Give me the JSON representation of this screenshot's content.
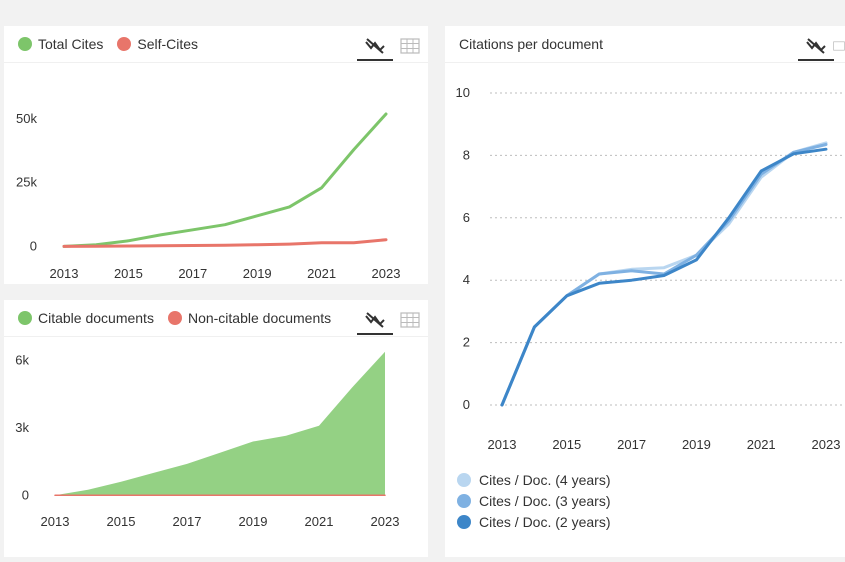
{
  "colors": {
    "total_cites": "#7dc56a",
    "self_cites": "#e8756a",
    "citable": "#7dc56a",
    "citable_fill": "#94d184",
    "non_citable": "#e8756a",
    "cpd_4y": "#b9d6f0",
    "cpd_3y": "#7fb1e2",
    "cpd_2y": "#3d86c8",
    "grid": "#bdbdbd"
  },
  "toolbar": {
    "chart_icon": "chart-icon",
    "table_icon": "table-icon"
  },
  "chart_data": [
    {
      "id": "cites",
      "type": "line",
      "x": [
        2013,
        2014,
        2015,
        2016,
        2017,
        2018,
        2019,
        2020,
        2021,
        2022,
        2023
      ],
      "xticks": [
        "2013",
        "2015",
        "2017",
        "2019",
        "2021",
        "2023"
      ],
      "yticks": [
        {
          "v": 0,
          "label": "0"
        },
        {
          "v": 25000,
          "label": "25k"
        },
        {
          "v": 50000,
          "label": "50k"
        }
      ],
      "ylim": [
        -3000,
        52000
      ],
      "series": [
        {
          "name": "Total Cites",
          "values": [
            0,
            600,
            2200,
            4500,
            6500,
            8500,
            12000,
            15500,
            23000,
            38000,
            52000
          ]
        },
        {
          "name": "Self-Cites",
          "values": [
            0,
            60,
            150,
            250,
            350,
            450,
            650,
            900,
            1400,
            1400,
            2600
          ]
        }
      ]
    },
    {
      "id": "docs",
      "type": "area",
      "x": [
        2013,
        2014,
        2015,
        2016,
        2017,
        2018,
        2019,
        2020,
        2021,
        2022,
        2023
      ],
      "xticks": [
        "2013",
        "2015",
        "2017",
        "2019",
        "2021",
        "2023"
      ],
      "yticks": [
        {
          "v": 0,
          "label": "0"
        },
        {
          "v": 3000,
          "label": "3k"
        },
        {
          "v": 6000,
          "label": "6k"
        }
      ],
      "ylim": [
        -300,
        6300
      ],
      "series": [
        {
          "name": "Citable documents",
          "values": [
            0,
            250,
            600,
            1000,
            1400,
            1900,
            2400,
            2650,
            3100,
            4800,
            6400
          ]
        },
        {
          "name": "Non-citable documents",
          "values": [
            0,
            0,
            0,
            0,
            0,
            0,
            0,
            0,
            0,
            0,
            0
          ]
        }
      ]
    },
    {
      "id": "cpd",
      "type": "line",
      "title": "Citations per document",
      "x": [
        2013,
        2014,
        2015,
        2016,
        2017,
        2018,
        2019,
        2020,
        2021,
        2022,
        2023
      ],
      "xticks": [
        "2013",
        "2015",
        "2017",
        "2019",
        "2021",
        "2023"
      ],
      "yticks": [
        {
          "v": 0,
          "label": "0"
        },
        {
          "v": 2,
          "label": "2"
        },
        {
          "v": 4,
          "label": "4"
        },
        {
          "v": 6,
          "label": "6"
        },
        {
          "v": 8,
          "label": "8"
        },
        {
          "v": 10,
          "label": "10"
        }
      ],
      "ylim": [
        0,
        10
      ],
      "grid": true,
      "series": [
        {
          "name": "Cites / Doc. (4 years)",
          "values": [
            0,
            2.5,
            3.5,
            4.2,
            4.35,
            4.4,
            4.8,
            5.8,
            7.3,
            8.1,
            8.4
          ]
        },
        {
          "name": "Cites / Doc. (3 years)",
          "values": [
            0,
            2.5,
            3.5,
            4.2,
            4.3,
            4.2,
            4.8,
            5.9,
            7.4,
            8.1,
            8.35
          ]
        },
        {
          "name": "Cites / Doc. (2 years)",
          "values": [
            0,
            2.5,
            3.5,
            3.9,
            4.0,
            4.15,
            4.65,
            6.0,
            7.5,
            8.05,
            8.2
          ]
        }
      ]
    }
  ]
}
